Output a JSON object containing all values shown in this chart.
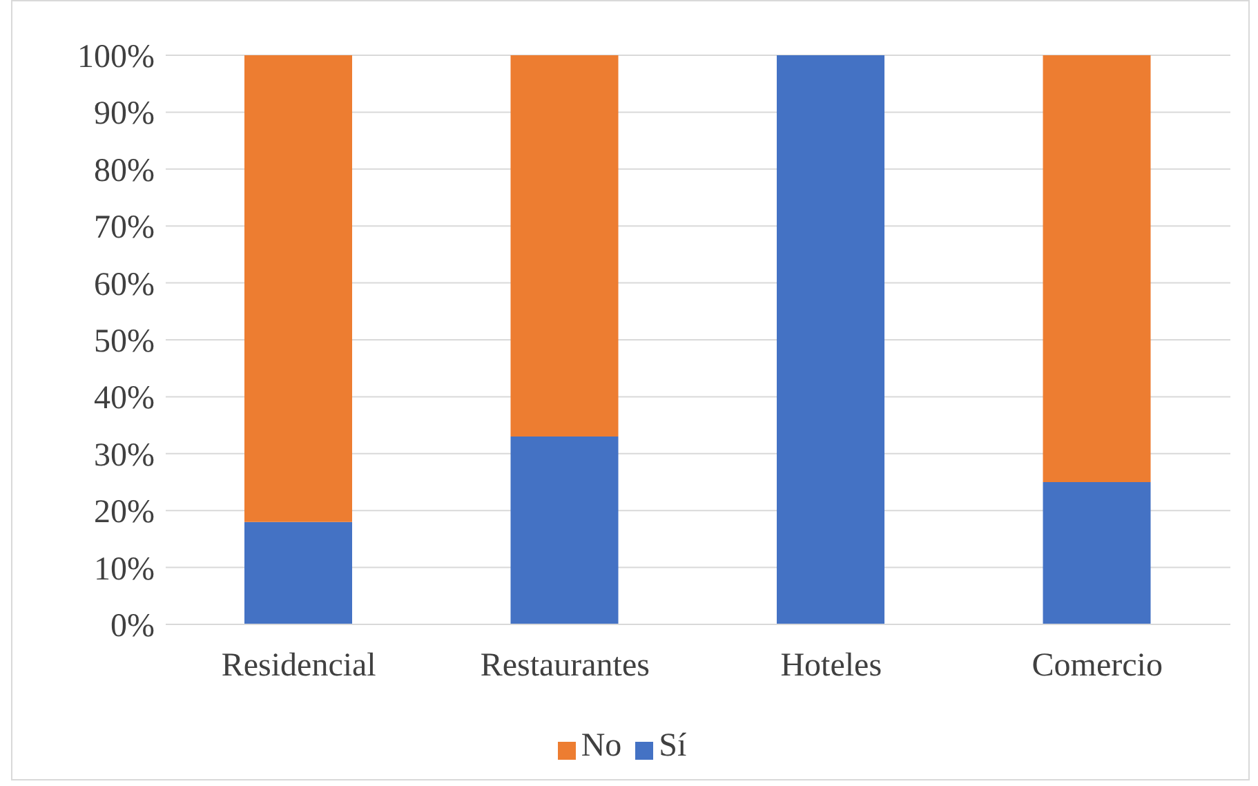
{
  "chart_data": {
    "type": "bar",
    "stacked": true,
    "categories": [
      "Residencial",
      "Restaurantes",
      "Hoteles",
      "Comercio"
    ],
    "series": [
      {
        "name": "Sí",
        "color": "#4472c4",
        "values": [
          18,
          33,
          100,
          25
        ]
      },
      {
        "name": "No",
        "color": "#ed7d31",
        "values": [
          82,
          67,
          0,
          75
        ]
      }
    ],
    "ylim": [
      0,
      100
    ],
    "yticks": [
      {
        "value": 0,
        "label": "0%"
      },
      {
        "value": 10,
        "label": "10%"
      },
      {
        "value": 20,
        "label": "20%"
      },
      {
        "value": 30,
        "label": "30%"
      },
      {
        "value": 40,
        "label": "40%"
      },
      {
        "value": 50,
        "label": "50%"
      },
      {
        "value": 60,
        "label": "60%"
      },
      {
        "value": 70,
        "label": "70%"
      },
      {
        "value": 80,
        "label": "80%"
      },
      {
        "value": 90,
        "label": "90%"
      },
      {
        "value": 100,
        "label": "100%"
      }
    ],
    "grid": "y",
    "legend": "bottom"
  }
}
